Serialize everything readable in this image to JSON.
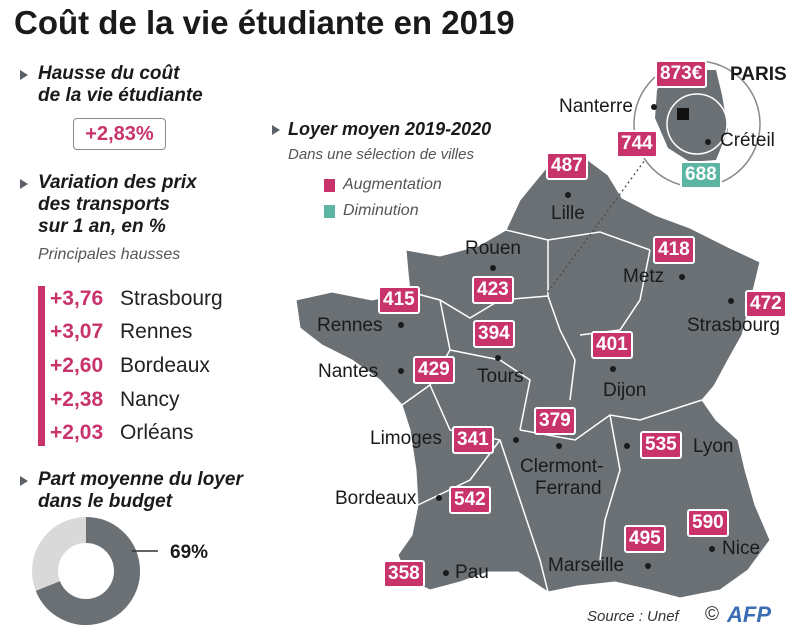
{
  "title": "Coût de la vie étudiante en 2019",
  "section1": {
    "line1": "Hausse du coût",
    "line2": "de la vie étudiante",
    "value": "+2,83%"
  },
  "section2": {
    "line1": "Variation des prix",
    "line2": "des transports",
    "line3": "sur 1 an, en %",
    "subtitle": "Principales hausses",
    "rows": [
      {
        "value": "+3,76",
        "city": "Strasbourg"
      },
      {
        "value": "+3,07",
        "city": "Rennes"
      },
      {
        "value": "+2,60",
        "city": "Bordeaux"
      },
      {
        "value": "+2,38",
        "city": "Nancy"
      },
      {
        "value": "+2,03",
        "city": "Orléans"
      }
    ]
  },
  "section3": {
    "line1": "Part moyenne du loyer",
    "line2": "dans le budget",
    "value": "69%",
    "share_percent": 69
  },
  "map": {
    "heading": "Loyer moyen 2019-2020",
    "subtitle": "Dans une sélection de villes",
    "legend_increase": "Augmentation",
    "legend_decrease": "Diminution",
    "paris_label": "PARIS",
    "cities": {
      "paris": {
        "value": "873€"
      },
      "nanterre": {
        "name": "Nanterre",
        "value": "744"
      },
      "creteil": {
        "name": "Créteil",
        "value": "688"
      },
      "lille": {
        "name": "Lille",
        "value": "487"
      },
      "rouen": {
        "name": "Rouen",
        "value": "423"
      },
      "metz": {
        "name": "Metz",
        "value": "418"
      },
      "strasbourg": {
        "name": "Strasbourg",
        "value": "472"
      },
      "rennes": {
        "name": "Rennes",
        "value": "415"
      },
      "tours": {
        "name": "Tours",
        "value": "394"
      },
      "dijon": {
        "name": "Dijon",
        "value": "401"
      },
      "nantes": {
        "name": "Nantes",
        "value": "429"
      },
      "limoges": {
        "name": "Limoges",
        "value": "341"
      },
      "clermont": {
        "name1": "Clermont-",
        "name2": "Ferrand",
        "value": "379"
      },
      "lyon": {
        "name": "Lyon",
        "value": "535"
      },
      "bordeaux": {
        "name": "Bordeaux",
        "value": "542"
      },
      "marseille": {
        "name": "Marseille",
        "value": "495"
      },
      "nice": {
        "name": "Nice",
        "value": "590"
      },
      "pau": {
        "name": "Pau",
        "value": "358"
      }
    }
  },
  "source": "Source : Unef",
  "copyright": "©",
  "brand": "AFP",
  "colors": {
    "increase": "#c9336b",
    "decrease": "#5bb5a2",
    "map": "#6b7075",
    "donut_light": "#d9d9d9"
  }
}
